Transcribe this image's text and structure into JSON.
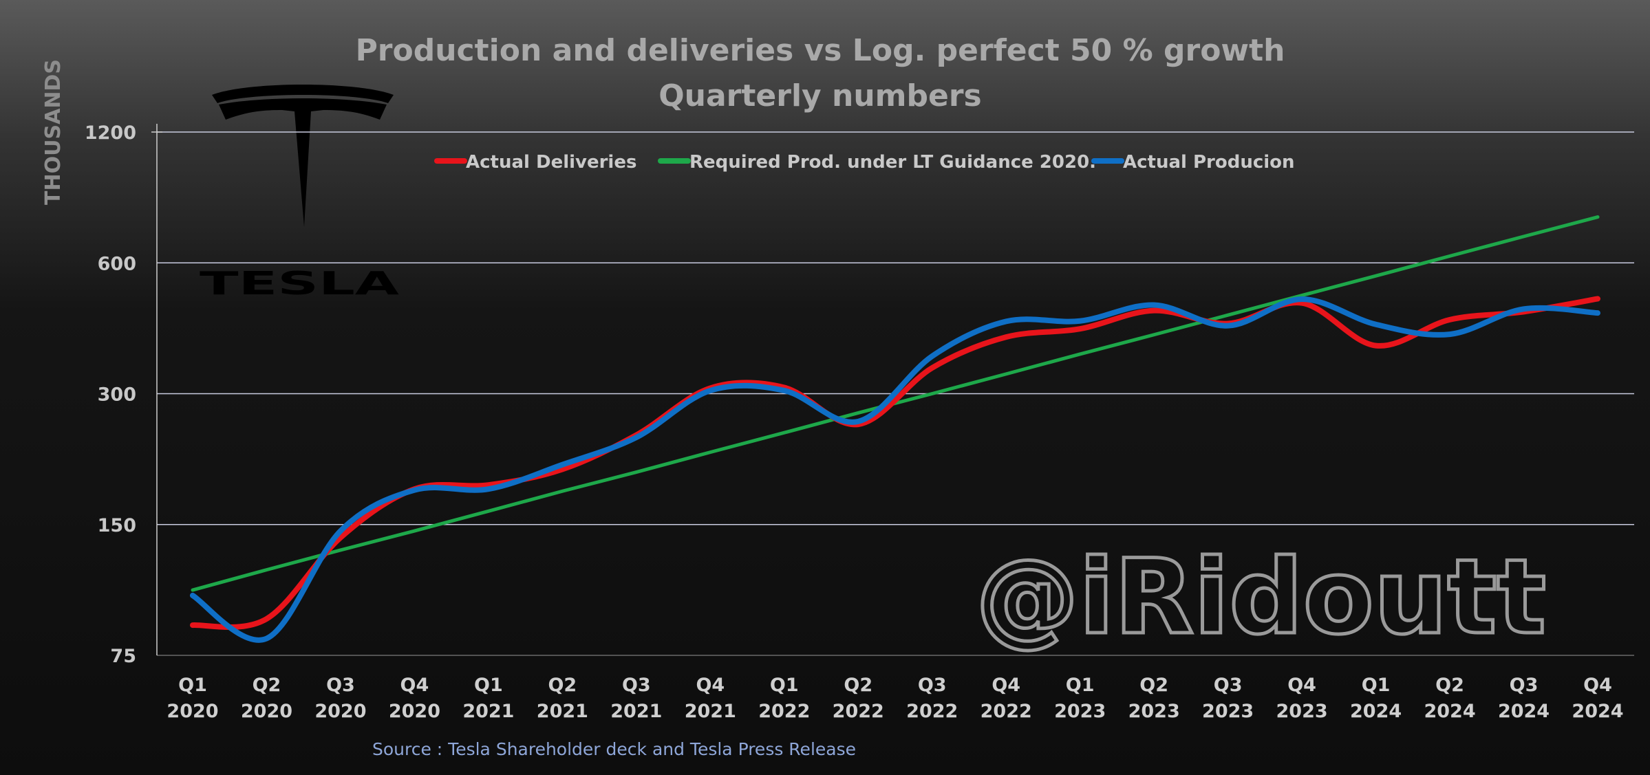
{
  "chart_data": {
    "type": "line",
    "title": "Production and deliveries vs Log. perfect  50 % growth",
    "subtitle": "Quarterly numbers",
    "ylabel": "THOUSANDS",
    "yscale": "log",
    "ylim": [
      75,
      1200
    ],
    "yticks": [
      75,
      150,
      300,
      600,
      1200
    ],
    "categories": [
      [
        "Q1",
        "2020"
      ],
      [
        "Q2",
        "2020"
      ],
      [
        "Q3",
        "2020"
      ],
      [
        "Q4",
        "2020"
      ],
      [
        "Q1",
        "2021"
      ],
      [
        "Q2",
        "2021"
      ],
      [
        "Q3",
        "2021"
      ],
      [
        "Q4",
        "2021"
      ],
      [
        "Q1",
        "2022"
      ],
      [
        "Q2",
        "2022"
      ],
      [
        "Q3",
        "2022"
      ],
      [
        "Q4",
        "2022"
      ],
      [
        "Q1",
        "2023"
      ],
      [
        "Q2",
        "2023"
      ],
      [
        "Q3",
        "2023"
      ],
      [
        "Q4",
        "2023"
      ],
      [
        "Q1",
        "2024"
      ],
      [
        "Q2",
        "2024"
      ],
      [
        "Q3",
        "2024"
      ],
      [
        "Q4",
        "2024"
      ]
    ],
    "series": [
      {
        "name": "Actual Deliveries",
        "color": "#e8141b",
        "values": [
          88,
          91,
          140,
          181,
          185,
          201,
          241,
          309,
          310,
          255,
          344,
          405,
          423,
          466,
          435,
          485,
          387,
          444,
          463,
          496
        ]
      },
      {
        "name": "Required Prod. under LT Guidance 2020.",
        "color": "#1ea84a",
        "values": [
          106,
          118,
          131,
          145,
          161,
          179,
          198,
          220,
          244,
          271,
          300,
          333,
          370,
          410,
          455,
          505,
          560,
          622,
          690,
          765
        ]
      },
      {
        "name": "Actual Producion",
        "color": "#0f6fc6",
        "values": [
          103,
          82,
          145,
          180,
          181,
          206,
          238,
          305,
          305,
          259,
          366,
          440,
          441,
          480,
          430,
          495,
          433,
          411,
          470,
          460
        ]
      }
    ],
    "grid": true,
    "legend": "top"
  },
  "source": "Source : Tesla Shareholder deck and Tesla Press Release",
  "watermark": "@iRidoutt",
  "brand": {
    "logo": "tesla-logo",
    "wordmark": "TESLA"
  }
}
